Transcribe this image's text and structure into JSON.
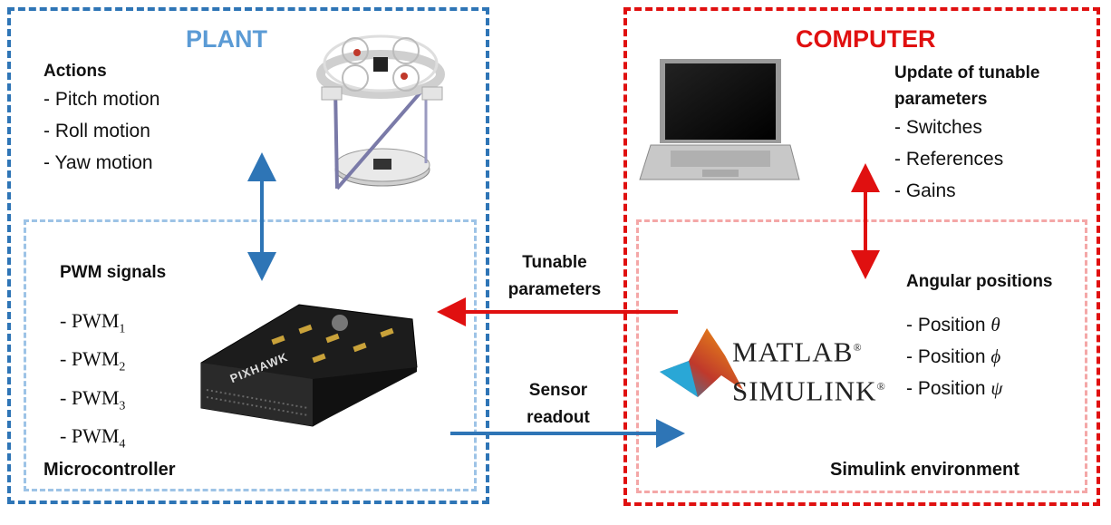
{
  "plant": {
    "title": "PLANT",
    "actions_heading": "Actions",
    "actions": [
      "- Pitch motion",
      "- Roll motion",
      "- Yaw motion"
    ],
    "pwm_heading": "PWM signals",
    "pwm": [
      {
        "prefix": "- PWM",
        "sub": "1"
      },
      {
        "prefix": "- PWM",
        "sub": "2"
      },
      {
        "prefix": "- PWM",
        "sub": "3"
      },
      {
        "prefix": "- PWM",
        "sub": "4"
      }
    ],
    "microcontroller_label": "Microcontroller",
    "board_text": "PIXHAWK"
  },
  "computer": {
    "title": "COMPUTER",
    "update_heading_line1": "Update of tunable",
    "update_heading_line2": "parameters",
    "updates": [
      "- Switches",
      "- References",
      "- Gains"
    ],
    "angular_heading": "Angular positions",
    "positions": [
      {
        "prefix": "- Position",
        "symbol": "θ"
      },
      {
        "prefix": "- Position",
        "symbol": "ϕ"
      },
      {
        "prefix": "- Position",
        "symbol": "ψ"
      }
    ],
    "simulink_env_label": "Simulink environment",
    "logo_line1": "MATLAB",
    "logo_line2": "SIMULINK",
    "logo_reg": "®"
  },
  "links": {
    "tunable_line1": "Tunable",
    "tunable_line2": "parameters",
    "sensor_line1": "Sensor",
    "sensor_line2": "readout"
  },
  "colors": {
    "plant_blue": "#2e75b6",
    "plant_light_blue": "#9dc3e6",
    "computer_red": "#e01010",
    "computer_light_red": "#f4a7a7"
  }
}
